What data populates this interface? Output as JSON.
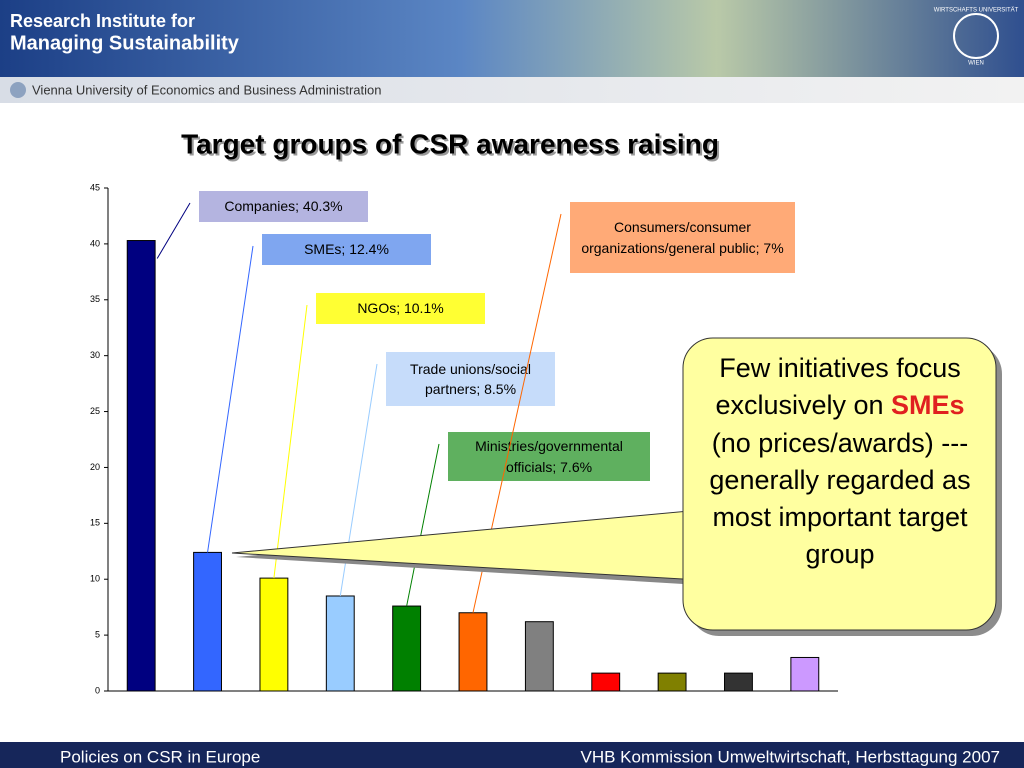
{
  "header": {
    "line1": "Research Institute for",
    "line2": "Managing Sustainability",
    "university": "Vienna University of Economics and Business Administration",
    "logo_top": "WIRTSCHAFTS UNIVERSITÄT",
    "logo_bottom": "WIEN"
  },
  "chart_data": {
    "type": "bar",
    "title": "Target groups of CSR awareness raising",
    "categories": [
      null,
      null,
      null,
      null,
      null,
      null,
      null,
      null,
      null,
      null,
      null
    ],
    "values": [
      40.3,
      12.4,
      10.1,
      8.5,
      7.6,
      7,
      6.2,
      1.6,
      1.6,
      1.6,
      3.0
    ],
    "value_labels": [
      "Companies; 40.3%",
      "SMEs; 12.4%",
      "NGOs; 10.1%",
      "Trade unions/social partners; 8.5%",
      "Ministries/governmental officials; 7.6%",
      "Consumers/consumer organizations/general public; 7%",
      null,
      null,
      null,
      null,
      null
    ],
    "colors": [
      "#000080",
      "#3366ff",
      "#ffff00",
      "#99ccff",
      "#008000",
      "#ff6600",
      "#808080",
      "#ff0000",
      "#808000",
      "#333333",
      "#cc99ff"
    ],
    "ylim": [
      0,
      45
    ],
    "yticks": [
      0,
      5,
      10,
      15,
      20,
      25,
      30,
      35,
      40,
      45
    ],
    "grid": false
  },
  "note": {
    "before": "Few initiatives focus exclusively on",
    "highlight": "SMEs",
    "after": "(no prices/awards) --- generally regarded as most important target group"
  },
  "footer": {
    "left": "Policies on CSR in Europe",
    "right": "VHB Kommission Umweltwirtschaft, Herbsttagung 2007"
  }
}
